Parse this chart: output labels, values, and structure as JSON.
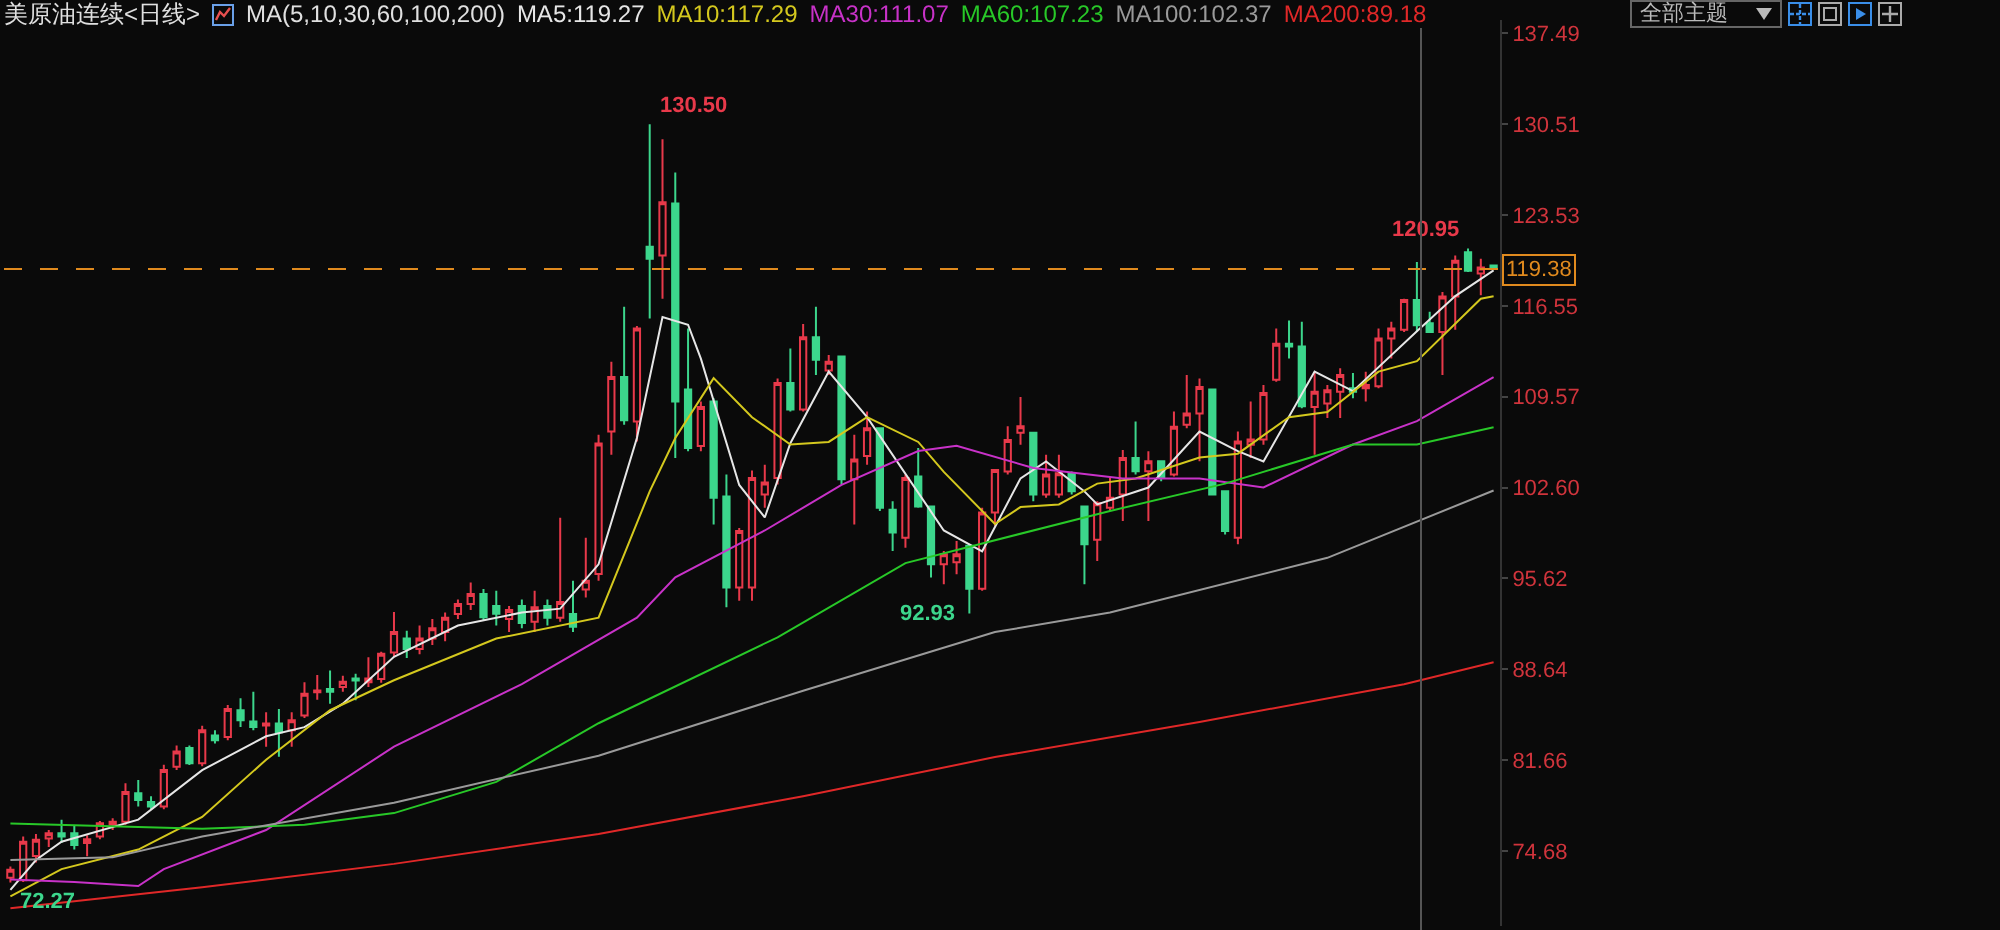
{
  "chart_data": {
    "type": "candlestick",
    "title": "美原油连续<日线>",
    "legend_title": "MA(5,10,30,60,100,200)",
    "legend": "top",
    "tick_labels": "y",
    "grid": false,
    "categories": [
      null,
      null,
      null,
      null,
      null,
      null,
      null,
      null,
      null,
      null,
      null,
      null,
      null,
      null,
      null,
      null,
      null,
      null,
      null,
      null,
      null,
      null,
      null,
      null,
      null,
      null,
      null,
      null,
      null,
      null,
      null,
      null,
      null,
      null,
      null,
      null,
      null,
      null,
      null,
      null,
      null,
      null,
      null,
      null,
      null,
      null,
      null,
      null,
      null,
      null,
      null,
      null,
      null,
      null,
      null,
      null,
      null,
      null,
      null,
      null,
      null,
      null,
      null,
      null,
      null,
      null,
      null,
      null,
      null,
      null,
      null,
      null,
      null,
      null,
      null,
      null,
      null,
      null,
      null,
      null,
      null,
      null,
      null,
      null,
      null,
      null,
      null,
      null,
      null,
      null,
      null,
      null,
      null,
      null,
      null,
      null,
      null,
      null,
      null,
      null,
      null,
      null,
      null,
      null,
      null,
      null,
      null,
      null,
      null,
      null,
      null,
      null,
      null,
      null,
      null,
      null,
      null
    ],
    "ohlc": [
      [
        72.64,
        73.5,
        72.27,
        73.25
      ],
      [
        72.44,
        75.8,
        72.3,
        75.4
      ],
      [
        74.3,
        76.0,
        73.8,
        75.55
      ],
      [
        75.65,
        76.3,
        75.0,
        76.06
      ],
      [
        76.06,
        77.08,
        75.3,
        75.8
      ],
      [
        76.06,
        76.6,
        74.8,
        75.14
      ],
      [
        75.3,
        75.9,
        74.28,
        75.6
      ],
      [
        75.8,
        77.0,
        75.6,
        76.82
      ],
      [
        76.72,
        77.2,
        76.3,
        76.93
      ],
      [
        76.93,
        79.89,
        76.7,
        79.22
      ],
      [
        79.12,
        80.14,
        78.1,
        78.61
      ],
      [
        78.46,
        78.9,
        77.9,
        78.1
      ],
      [
        78.1,
        81.31,
        77.9,
        80.9
      ],
      [
        81.16,
        82.8,
        80.9,
        82.33
      ],
      [
        82.59,
        82.8,
        81.3,
        81.42
      ],
      [
        81.42,
        84.3,
        81.2,
        83.96
      ],
      [
        83.56,
        83.96,
        82.94,
        83.2
      ],
      [
        83.45,
        85.9,
        83.2,
        85.6
      ],
      [
        85.49,
        86.41,
        84.22,
        84.73
      ],
      [
        84.63,
        86.92,
        83.96,
        84.22
      ],
      [
        84.32,
        85.34,
        82.69,
        84.47
      ],
      [
        84.47,
        85.6,
        81.92,
        83.81
      ],
      [
        83.96,
        85.34,
        82.69,
        84.73
      ],
      [
        85.09,
        87.64,
        84.9,
        86.77
      ],
      [
        86.87,
        88.2,
        86.3,
        87.02
      ],
      [
        87.13,
        88.55,
        86.0,
        86.92
      ],
      [
        87.28,
        88.15,
        86.92,
        87.69
      ],
      [
        87.94,
        88.3,
        86.26,
        87.79
      ],
      [
        87.64,
        89.57,
        87.28,
        87.94
      ],
      [
        87.89,
        89.98,
        87.6,
        89.83
      ],
      [
        89.93,
        93.04,
        89.57,
        91.51
      ],
      [
        91.0,
        91.6,
        89.5,
        90.2
      ],
      [
        90.2,
        92.0,
        89.8,
        91.0
      ],
      [
        91.0,
        92.5,
        90.5,
        91.8
      ],
      [
        91.5,
        93.0,
        90.8,
        92.6
      ],
      [
        92.89,
        94.0,
        92.5,
        93.65
      ],
      [
        93.65,
        95.3,
        93.2,
        94.42
      ],
      [
        94.42,
        94.8,
        92.4,
        92.63
      ],
      [
        93.5,
        94.67,
        92.0,
        92.9
      ],
      [
        92.5,
        93.5,
        91.5,
        93.2
      ],
      [
        93.5,
        94.0,
        91.8,
        92.2
      ],
      [
        92.3,
        94.67,
        91.5,
        93.4
      ],
      [
        93.5,
        94.0,
        92.0,
        92.6
      ],
      [
        92.6,
        100.28,
        92.3,
        93.8
      ],
      [
        92.89,
        95.44,
        91.5,
        91.9
      ],
      [
        94.77,
        98.75,
        94.16,
        95.44
      ],
      [
        95.95,
        106.65,
        95.44,
        105.99
      ],
      [
        106.91,
        112.26,
        105.12,
        111.09
      ],
      [
        111.09,
        116.49,
        107.42,
        107.77
      ],
      [
        107.67,
        115.0,
        106.14,
        114.81
      ],
      [
        121.08,
        130.5,
        115.58,
        120.16
      ],
      [
        120.42,
        129.34,
        117.1,
        124.5
      ],
      [
        124.4,
        126.79,
        104.87,
        109.2
      ],
      [
        110.12,
        114.81,
        105.38,
        105.63
      ],
      [
        105.79,
        109.2,
        105.38,
        108.79
      ],
      [
        109.2,
        109.46,
        99.77,
        101.81
      ],
      [
        101.91,
        103.59,
        93.4,
        94.93
      ],
      [
        94.93,
        99.5,
        93.91,
        99.26
      ],
      [
        94.93,
        103.9,
        93.91,
        103.34
      ],
      [
        102.06,
        104.35,
        101.04,
        102.98
      ],
      [
        103.33,
        110.98,
        102.83,
        110.63
      ],
      [
        110.63,
        113.28,
        108.43,
        108.59
      ],
      [
        108.59,
        115.16,
        108.43,
        114.14
      ],
      [
        114.14,
        116.49,
        111.24,
        112.41
      ],
      [
        111.59,
        112.77,
        111.24,
        112.26
      ],
      [
        112.66,
        112.66,
        102.83,
        103.23
      ],
      [
        103.23,
        106.65,
        99.77,
        104.76
      ],
      [
        105.02,
        108.43,
        104.35,
        107.16
      ],
      [
        107.16,
        107.16,
        100.79,
        101.04
      ],
      [
        100.89,
        101.55,
        97.73,
        99.15
      ],
      [
        98.75,
        103.59,
        97.98,
        103.33
      ],
      [
        103.44,
        105.63,
        101.04,
        101.14
      ],
      [
        101.14,
        101.14,
        95.69,
        96.71
      ],
      [
        96.71,
        97.73,
        95.18,
        97.47
      ],
      [
        96.86,
        98.49,
        95.94,
        97.47
      ],
      [
        98.13,
        98.24,
        92.93,
        94.82
      ],
      [
        94.82,
        101.04,
        94.67,
        100.68
      ],
      [
        100.68,
        103.95,
        99.66,
        103.95
      ],
      [
        103.84,
        107.31,
        103.59,
        106.24
      ],
      [
        106.8,
        109.55,
        105.88,
        107.31
      ],
      [
        106.8,
        106.8,
        101.55,
        102.06
      ],
      [
        102.06,
        105.12,
        101.81,
        103.59
      ],
      [
        102.06,
        105.12,
        101.81,
        103.69
      ],
      [
        103.69,
        103.84,
        102.06,
        102.32
      ],
      [
        101.14,
        101.14,
        95.18,
        98.24
      ],
      [
        98.59,
        101.55,
        96.96,
        101.4
      ],
      [
        101.04,
        103.33,
        100.79,
        101.81
      ],
      [
        102.06,
        105.48,
        100.02,
        104.87
      ],
      [
        104.87,
        107.67,
        103.59,
        103.85
      ],
      [
        103.85,
        105.38,
        100.02,
        104.61
      ],
      [
        104.61,
        104.61,
        103.08,
        103.34
      ],
      [
        103.59,
        108.44,
        103.44,
        107.26
      ],
      [
        107.42,
        111.24,
        107.16,
        108.28
      ],
      [
        108.28,
        110.98,
        104.61,
        110.32
      ],
      [
        110.12,
        110.12,
        102.06,
        102.06
      ],
      [
        102.32,
        102.32,
        99.0,
        99.26
      ],
      [
        98.75,
        106.91,
        98.24,
        106.14
      ],
      [
        105.89,
        109.2,
        104.87,
        106.29
      ],
      [
        106.29,
        110.47,
        105.89,
        109.86
      ],
      [
        110.88,
        114.81,
        110.73,
        113.64
      ],
      [
        113.64,
        115.42,
        112.51,
        113.43
      ],
      [
        113.43,
        115.32,
        108.69,
        108.84
      ],
      [
        108.79,
        111.49,
        105.12,
        109.96
      ],
      [
        109.05,
        110.47,
        107.93,
        110.07
      ],
      [
        109.96,
        111.75,
        107.93,
        111.24
      ],
      [
        110.22,
        111.39,
        109.45,
        109.96
      ],
      [
        110.22,
        111.49,
        109.2,
        110.47
      ],
      [
        110.37,
        114.81,
        110.22,
        114.04
      ],
      [
        114.04,
        115.32,
        112.51,
        114.81
      ],
      [
        114.71,
        117.1,
        114.55,
        117.0
      ],
      [
        117.0,
        119.91,
        114.55,
        115.06
      ],
      [
        115.22,
        116.1,
        114.55,
        114.55
      ],
      [
        114.55,
        117.61,
        111.24,
        117.26
      ],
      [
        117.26,
        120.42,
        114.71,
        120.01
      ],
      [
        120.67,
        120.95,
        119.14,
        119.24
      ],
      [
        119.04,
        120.16,
        117.36,
        119.5
      ],
      [
        119.65,
        119.7,
        119.3,
        119.38
      ]
    ],
    "colors": [
      "#e8394a",
      "#e8394a",
      "#e8394a",
      "#e8394a",
      "#3cd68c",
      "#3cd68c",
      "#e8394a",
      "#e8394a",
      "#e8394a",
      "#e8394a",
      "#3cd68c",
      "#3cd68c",
      "#e8394a",
      "#e8394a",
      "#3cd68c",
      "#e8394a",
      "#3cd68c",
      "#e8394a",
      "#3cd68c",
      "#3cd68c",
      "#e8394a",
      "#3cd68c",
      "#e8394a",
      "#e8394a",
      "#e8394a",
      "#3cd68c",
      "#e8394a",
      "#3cd68c",
      "#e8394a",
      "#e8394a",
      "#e8394a",
      "#3cd68c",
      "#e8394a",
      "#e8394a",
      "#e8394a",
      "#e8394a",
      "#e8394a",
      "#3cd68c",
      "#3cd68c",
      "#e8394a",
      "#3cd68c",
      "#e8394a",
      "#3cd68c",
      "#e8394a",
      "#3cd68c",
      "#e8394a",
      "#e8394a",
      "#e8394a",
      "#3cd68c",
      "#e8394a",
      "#3cd68c",
      "#e8394a",
      "#3cd68c",
      "#3cd68c",
      "#e8394a",
      "#3cd68c",
      "#3cd68c",
      "#e8394a",
      "#e8394a",
      "#e8394a",
      "#e8394a",
      "#3cd68c",
      "#e8394a",
      "#3cd68c",
      "#e8394a",
      "#3cd68c",
      "#e8394a",
      "#e8394a",
      "#3cd68c",
      "#3cd68c",
      "#e8394a",
      "#3cd68c",
      "#3cd68c",
      "#e8394a",
      "#e8394a",
      "#3cd68c",
      "#e8394a",
      "#e8394a",
      "#e8394a",
      "#e8394a",
      "#3cd68c",
      "#e8394a",
      "#e8394a",
      "#3cd68c",
      "#3cd68c",
      "#e8394a",
      "#e8394a",
      "#e8394a",
      "#3cd68c",
      "#e8394a",
      "#3cd68c",
      "#e8394a",
      "#e8394a",
      "#e8394a",
      "#3cd68c",
      "#3cd68c",
      "#e8394a",
      "#e8394a",
      "#e8394a",
      "#e8394a",
      "#3cd68c",
      "#3cd68c",
      "#e8394a",
      "#e8394a",
      "#e8394a",
      "#3cd68c",
      "#e8394a",
      "#e8394a",
      "#e8394a",
      "#e8394a",
      "#3cd68c",
      "#3cd68c",
      "#e8394a",
      "#e8394a",
      "#3cd68c",
      "#e8394a",
      "#3cd68c"
    ],
    "series": [
      {
        "type": "line",
        "name": "MA5:119.27",
        "color": "#e6e6e6",
        "values": [
          71.7,
          null,
          74.0,
          null,
          75.4,
          null,
          null,
          null,
          null,
          null,
          77.1,
          null,
          null,
          null,
          null,
          80.9,
          null,
          null,
          null,
          null,
          83.5,
          null,
          null,
          84.2,
          null,
          null,
          86.0,
          null,
          null,
          null,
          89.6,
          null,
          null,
          null,
          null,
          92.0,
          null,
          null,
          null,
          null,
          93.0,
          null,
          null,
          93.3,
          null,
          null,
          96.7,
          null,
          null,
          106.4,
          null,
          115.7,
          null,
          115.1,
          112.5,
          null,
          null,
          102.8,
          null,
          100.3,
          null,
          106.0,
          null,
          null,
          111.5,
          null,
          null,
          108.0,
          null,
          null,
          null,
          null,
          null,
          99.3,
          null,
          null,
          97.7,
          null,
          null,
          103.3,
          null,
          104.6,
          null,
          null,
          102.3,
          101.3,
          null,
          null,
          null,
          102.6,
          null,
          null,
          null,
          106.9,
          null,
          null,
          105.4,
          null,
          104.6,
          null,
          null,
          null,
          111.5,
          null,
          null,
          110.0,
          null,
          null,
          null,
          null,
          114.6,
          null,
          null,
          117.3,
          null,
          null,
          119.27
        ]
      },
      {
        "type": "line",
        "name": "MA10:117.29",
        "color": "#d4c81e",
        "values": [
          71.2,
          null,
          null,
          null,
          73.3,
          null,
          null,
          null,
          null,
          null,
          74.8,
          null,
          null,
          null,
          null,
          77.3,
          null,
          null,
          null,
          null,
          81.7,
          null,
          null,
          null,
          null,
          85.5,
          null,
          null,
          null,
          null,
          87.8,
          null,
          null,
          null,
          null,
          null,
          null,
          null,
          91.0,
          null,
          null,
          null,
          null,
          null,
          null,
          null,
          92.6,
          null,
          null,
          null,
          102.3,
          null,
          106.4,
          null,
          null,
          111.0,
          null,
          null,
          108.0,
          null,
          null,
          105.9,
          null,
          null,
          106.1,
          null,
          null,
          108.0,
          null,
          null,
          null,
          106.1,
          null,
          103.8,
          null,
          null,
          null,
          99.8,
          null,
          101.1,
          null,
          null,
          101.3,
          null,
          null,
          102.9,
          null,
          null,
          103.3,
          null,
          null,
          null,
          null,
          104.9,
          null,
          null,
          105.2,
          null,
          null,
          null,
          108.0,
          null,
          null,
          108.4,
          null,
          null,
          null,
          111.5,
          null,
          null,
          112.3,
          null,
          null,
          null,
          null,
          117.1,
          117.29
        ]
      },
      {
        "type": "line",
        "name": "MA30:111.07",
        "color": "#c832c8",
        "values": [
          72.5,
          null,
          null,
          null,
          null,
          72.3,
          null,
          null,
          null,
          null,
          72.0,
          null,
          73.3,
          null,
          null,
          null,
          null,
          null,
          null,
          null,
          76.3,
          null,
          null,
          null,
          null,
          null,
          null,
          null,
          null,
          null,
          82.7,
          null,
          null,
          null,
          null,
          null,
          null,
          null,
          null,
          null,
          87.5,
          null,
          null,
          null,
          null,
          null,
          null,
          null,
          null,
          92.6,
          null,
          null,
          95.7,
          null,
          null,
          null,
          null,
          null,
          null,
          99.3,
          null,
          null,
          null,
          null,
          null,
          102.8,
          null,
          null,
          null,
          null,
          null,
          105.4,
          null,
          null,
          105.8,
          null,
          null,
          null,
          null,
          null,
          104.1,
          null,
          null,
          null,
          null,
          null,
          null,
          103.3,
          null,
          null,
          null,
          null,
          null,
          103.3,
          null,
          null,
          null,
          null,
          102.6,
          null,
          null,
          null,
          null,
          null,
          null,
          105.9,
          null,
          null,
          null,
          null,
          107.7,
          null,
          null,
          null,
          null,
          null,
          111.07
        ]
      },
      {
        "type": "line",
        "name": "MA60:107.23",
        "color": "#28c828",
        "values": [
          76.8,
          null,
          null,
          null,
          null,
          null,
          null,
          null,
          null,
          null,
          null,
          null,
          null,
          null,
          null,
          76.4,
          null,
          null,
          null,
          null,
          null,
          null,
          null,
          76.7,
          null,
          null,
          null,
          null,
          null,
          null,
          77.6,
          null,
          null,
          null,
          null,
          null,
          null,
          null,
          80.0,
          null,
          null,
          null,
          null,
          null,
          null,
          null,
          84.5,
          null,
          null,
          null,
          null,
          null,
          null,
          null,
          null,
          null,
          null,
          null,
          null,
          null,
          91.1,
          null,
          null,
          null,
          null,
          null,
          null,
          null,
          null,
          null,
          96.8,
          null,
          null,
          null,
          null,
          null,
          null,
          null,
          null,
          null,
          null,
          null,
          null,
          null,
          null,
          null,
          100.8,
          null,
          null,
          null,
          null,
          null,
          null,
          null,
          null,
          102.9,
          null,
          null,
          null,
          null,
          null,
          null,
          null,
          null,
          null,
          105.9,
          null,
          null,
          null,
          null,
          105.9,
          null,
          null,
          null,
          null,
          null,
          107.23
        ]
      },
      {
        "type": "line",
        "name": "MA100:102.37",
        "color": "#9a9a9a",
        "values": [
          74.0,
          null,
          null,
          null,
          null,
          null,
          null,
          null,
          74.2,
          null,
          null,
          null,
          null,
          null,
          null,
          75.8,
          null,
          null,
          null,
          null,
          null,
          null,
          null,
          null,
          null,
          null,
          null,
          null,
          null,
          null,
          78.4,
          null,
          null,
          null,
          null,
          null,
          null,
          null,
          null,
          null,
          null,
          null,
          null,
          null,
          null,
          null,
          82.0,
          null,
          null,
          null,
          null,
          null,
          null,
          null,
          null,
          null,
          null,
          null,
          null,
          null,
          null,
          null,
          87.0,
          null,
          null,
          null,
          null,
          null,
          null,
          null,
          null,
          null,
          null,
          null,
          null,
          null,
          null,
          91.5,
          null,
          null,
          null,
          null,
          null,
          null,
          null,
          null,
          93.0,
          null,
          null,
          null,
          null,
          null,
          null,
          null,
          null,
          null,
          null,
          null,
          null,
          null,
          null,
          null,
          null,
          97.2,
          null,
          null,
          null,
          null,
          null,
          null,
          null,
          null,
          null,
          null,
          null,
          null,
          102.37
        ]
      },
      {
        "type": "line",
        "name": "MA200:89.18",
        "color": "#e02828",
        "values": [
          70.3,
          null,
          null,
          null,
          null,
          null,
          null,
          null,
          null,
          null,
          null,
          null,
          null,
          null,
          null,
          71.9,
          null,
          null,
          null,
          null,
          null,
          null,
          null,
          null,
          null,
          null,
          null,
          null,
          null,
          null,
          73.7,
          null,
          null,
          null,
          null,
          null,
          null,
          null,
          null,
          null,
          null,
          null,
          null,
          null,
          null,
          null,
          76.0,
          null,
          null,
          null,
          null,
          null,
          null,
          null,
          null,
          null,
          null,
          null,
          null,
          null,
          null,
          null,
          78.9,
          null,
          null,
          null,
          null,
          null,
          null,
          null,
          null,
          null,
          null,
          null,
          null,
          null,
          null,
          81.9,
          null,
          null,
          null,
          null,
          null,
          null,
          null,
          null,
          null,
          null,
          null,
          null,
          null,
          null,
          null,
          84.6,
          null,
          null,
          null,
          null,
          null,
          null,
          null,
          null,
          null,
          null,
          null,
          null,
          null,
          null,
          null,
          87.5,
          null,
          null,
          null,
          null,
          null,
          null,
          89.18
        ]
      }
    ],
    "ylim": [
      68.93,
      138.5
    ],
    "yticks": [
      137.49,
      130.51,
      123.53,
      116.55,
      109.57,
      {
        "value": 102.6,
        "label": "102.60"
      },
      95.62,
      88.64,
      81.66,
      74.68
    ],
    "ref_lines": [
      {
        "axis": "y",
        "value": 119.38,
        "label": "119.38",
        "color": "#e08a1e",
        "line_style": "dashed"
      }
    ],
    "annotations": [
      "130.50",
      "92.93",
      "72.27",
      "120.95",
      "全部主题"
    ]
  }
}
